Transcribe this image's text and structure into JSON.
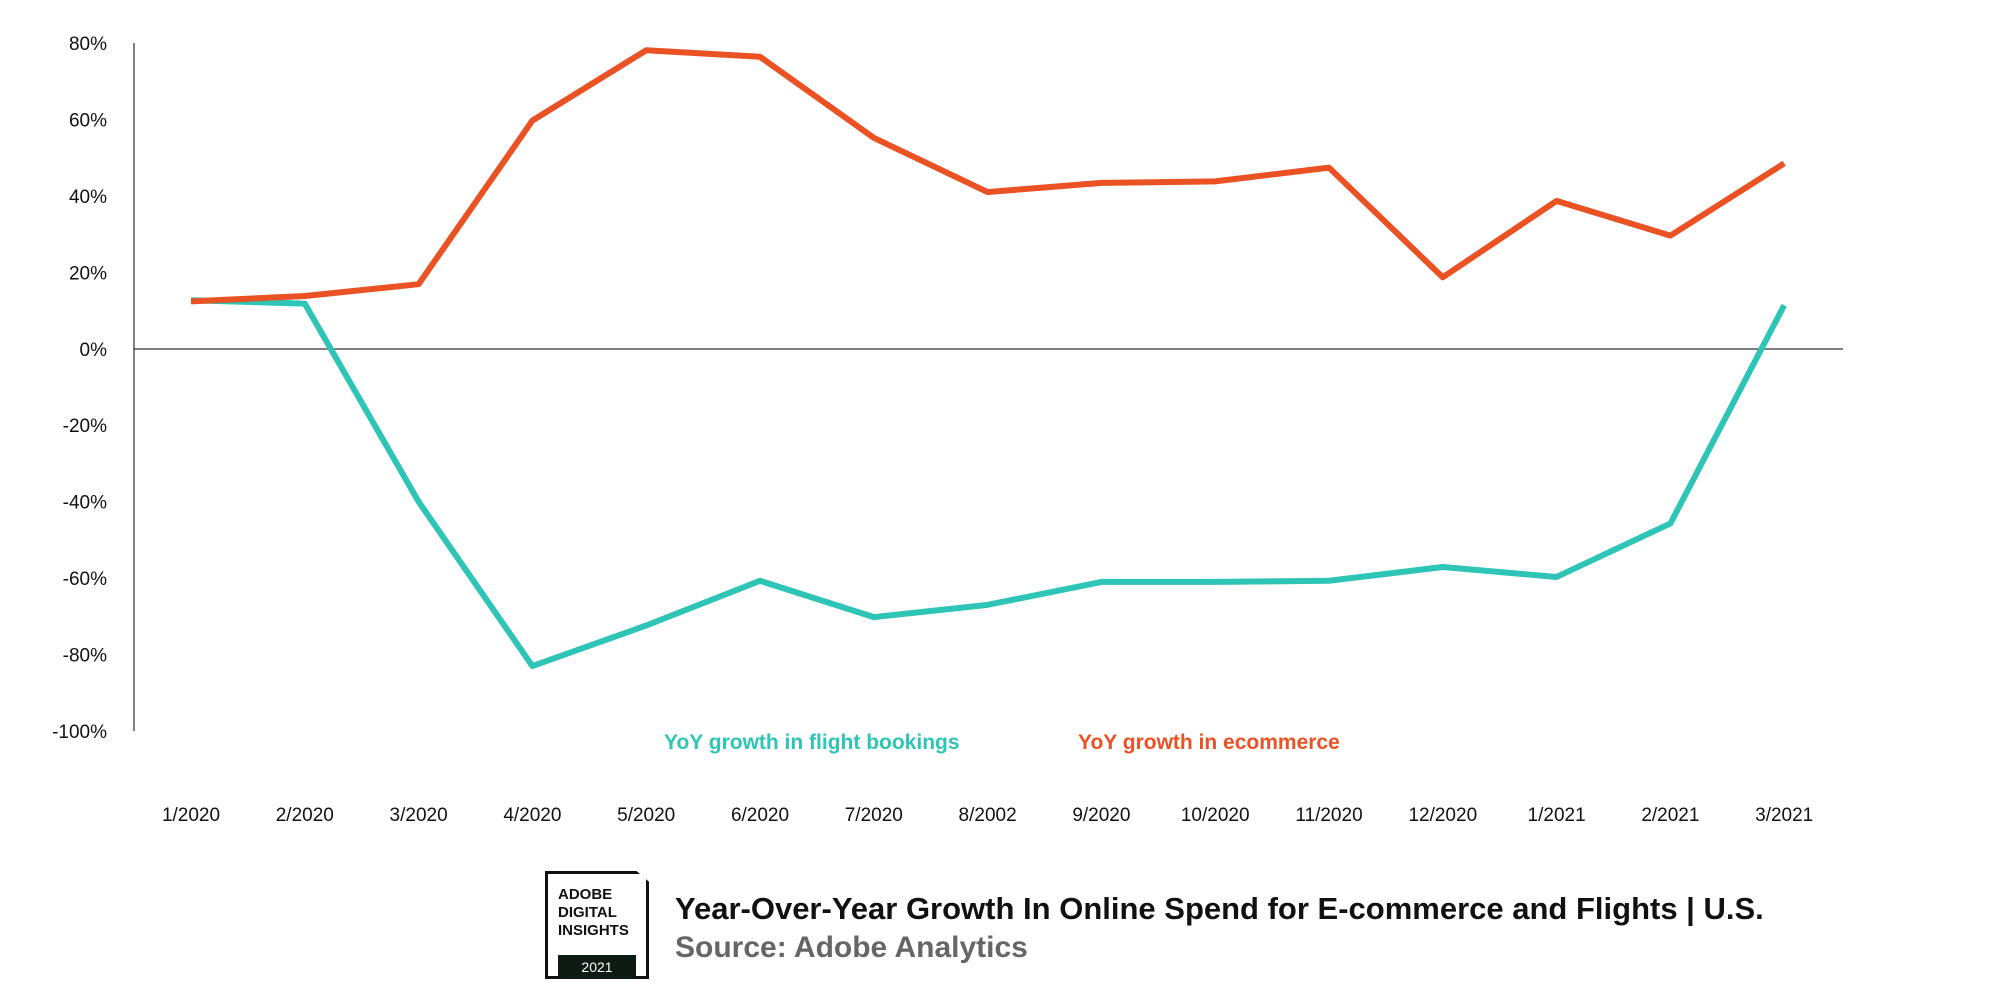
{
  "chart_data": {
    "type": "line",
    "categories": [
      "1/2020",
      "2/2020",
      "3/2020",
      "4/2020",
      "5/2020",
      "6/2020",
      "7/2020",
      "8/2002",
      "9/2020",
      "10/2020",
      "11/2020",
      "12/2020",
      "1/2021",
      "2/2021",
      "3/2021"
    ],
    "series": [
      {
        "name": "YoY growth in flight bookings",
        "color": "#2EC4B6",
        "values": [
          12.7,
          11.8,
          -40,
          -83,
          -72.4,
          -60.7,
          -70.2,
          -67,
          -61,
          -61,
          -60.7,
          -57.1,
          -59.7,
          -45.7,
          11.4
        ]
      },
      {
        "name": "YoY growth in ecommerce",
        "color": "#EA5123",
        "values": [
          12.4,
          13.8,
          16.9,
          59.7,
          78.1,
          76.4,
          55.2,
          41,
          43.4,
          43.8,
          47.4,
          18.7,
          38.7,
          29.6,
          48.5
        ]
      }
    ],
    "yticks": [
      "80%",
      "60%",
      "40%",
      "20%",
      "0%",
      "-20%",
      "-40%",
      "-60%",
      "-80%",
      "-100%"
    ],
    "ytick_values": [
      80,
      60,
      40,
      20,
      0,
      -20,
      -40,
      -60,
      -80,
      -100
    ],
    "ylim": [
      -100,
      80
    ],
    "grid": false,
    "legend_placement": "bottom",
    "title": "Year-Over-Year Growth In Online Spend for E-commerce and Flights | U.S.",
    "subtitle": "Source: Adobe Analytics"
  },
  "logo": {
    "lines": [
      "ADOBE",
      "DIGITAL",
      "INSIGHTS"
    ],
    "year": "2021"
  }
}
